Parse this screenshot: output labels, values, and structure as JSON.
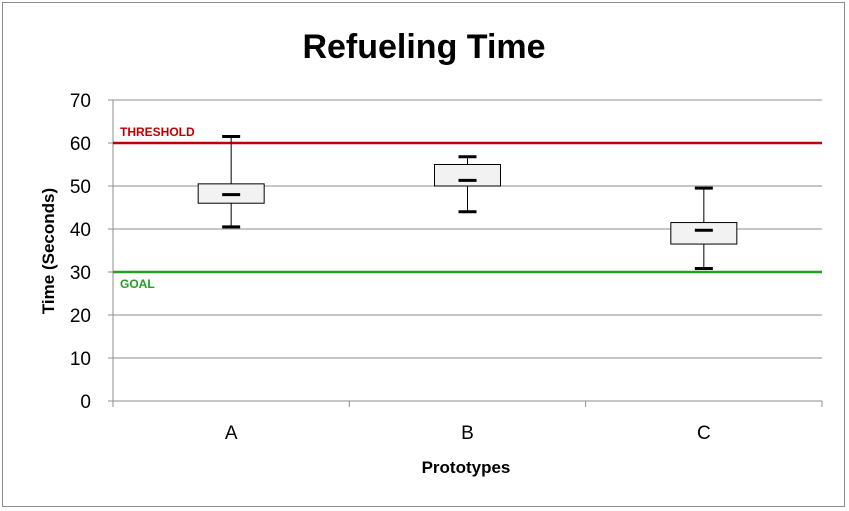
{
  "chart_data": {
    "type": "boxplot",
    "title": "Refueling Time",
    "xlabel": "Prototypes",
    "ylabel": "Time (Seconds)",
    "ylim": [
      0,
      70
    ],
    "yticks": [
      0,
      10,
      20,
      30,
      40,
      50,
      60,
      70
    ],
    "grid": true,
    "categories": [
      "A",
      "B",
      "C"
    ],
    "boxes": [
      {
        "category": "A",
        "min": 40.5,
        "q1": 46,
        "median": 48,
        "q3": 50.5,
        "max": 61.5
      },
      {
        "category": "B",
        "min": 44,
        "q1": 50,
        "median": 51.3,
        "q3": 55,
        "max": 56.8
      },
      {
        "category": "C",
        "min": 30.8,
        "q1": 36.5,
        "median": 39.7,
        "q3": 41.5,
        "max": 49.5
      }
    ],
    "reference_lines": [
      {
        "label": "THRESHOLD",
        "value": 60,
        "color": "#c00000"
      },
      {
        "label": "GOAL",
        "value": 30,
        "color": "#22a022"
      }
    ],
    "colors": {
      "grid": "#8c8c8c",
      "box_fill": "#f2f2f2",
      "box_stroke": "#000000"
    }
  }
}
